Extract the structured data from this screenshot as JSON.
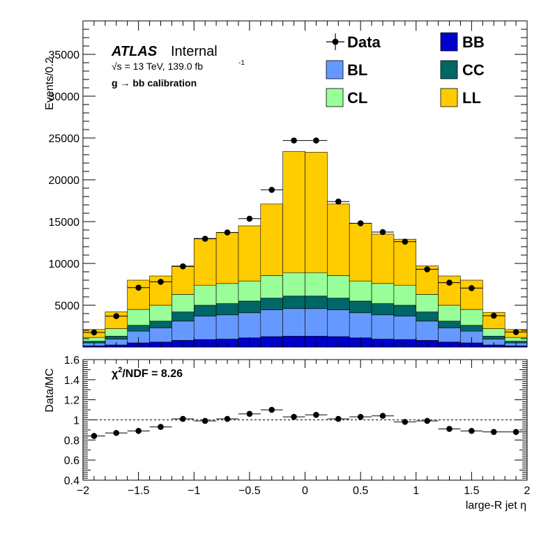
{
  "colors": {
    "BB": "#0000cc",
    "BL": "#6699ff",
    "CC": "#006666",
    "CL": "#99ff99",
    "LL": "#ffcc00",
    "data": "#000000"
  },
  "chart_data": [
    {
      "type": "bar",
      "stacked": true,
      "xlabel": "large-R jet η",
      "ylabel": "Events/0.2",
      "xlim": [
        -2,
        2
      ],
      "ylim": [
        0,
        39000
      ],
      "yticks": [
        5000,
        10000,
        15000,
        20000,
        25000,
        30000,
        35000
      ],
      "ytick_labels": [
        "5000",
        "10000",
        "15000",
        "20000",
        "25000",
        "30000",
        "35000"
      ],
      "x_bin_edges": [
        -2.0,
        -1.8,
        -1.6,
        -1.4,
        -1.2,
        -1.0,
        -0.8,
        -0.6,
        -0.4,
        -0.2,
        0.0,
        0.2,
        0.4,
        0.6,
        0.8,
        1.0,
        1.2,
        1.4,
        1.6,
        1.8,
        2.0
      ],
      "annotations": {
        "atlas": "ATLAS",
        "internal": "Internal",
        "energy": "√s = 13 TeV, 139.0 fb",
        "energy_sup": "-1",
        "selection": "g → bb calibration"
      },
      "legend": {
        "placement": "top-right",
        "entries": [
          "Data",
          "BB",
          "BL",
          "CC",
          "CL",
          "LL"
        ]
      },
      "series": [
        {
          "name": "BB",
          "values": [
            150,
            250,
            500,
            600,
            800,
            900,
            950,
            1100,
            1250,
            1300,
            1300,
            1250,
            1100,
            950,
            900,
            800,
            600,
            500,
            250,
            150
          ]
        },
        {
          "name": "BL",
          "values": [
            350,
            700,
            1400,
            1700,
            2300,
            2800,
            2900,
            3000,
            3200,
            3300,
            3300,
            3200,
            3000,
            2900,
            2800,
            2300,
            1700,
            1400,
            700,
            350
          ]
        },
        {
          "name": "CC",
          "values": [
            200,
            350,
            700,
            800,
            1100,
            1300,
            1350,
            1400,
            1400,
            1500,
            1500,
            1400,
            1400,
            1350,
            1300,
            1100,
            800,
            700,
            350,
            200
          ]
        },
        {
          "name": "CL",
          "values": [
            450,
            900,
            1900,
            1900,
            2100,
            2400,
            2400,
            2400,
            2700,
            2800,
            2800,
            2700,
            2400,
            2400,
            2400,
            2100,
            1900,
            1900,
            900,
            450
          ]
        },
        {
          "name": "LL",
          "values": [
            950,
            2000,
            3500,
            3500,
            3400,
            5600,
            6100,
            6600,
            8550,
            14500,
            14400,
            8550,
            6900,
            5900,
            5500,
            3400,
            3500,
            3500,
            1950,
            950
          ]
        }
      ],
      "data": {
        "name": "Data",
        "x": [
          -1.9,
          -1.7,
          -1.5,
          -1.3,
          -1.1,
          -0.9,
          -0.7,
          -0.5,
          -0.3,
          -0.1,
          0.1,
          0.3,
          0.5,
          0.7,
          0.9,
          1.1,
          1.3,
          1.5,
          1.7,
          1.9
        ],
        "y": [
          1750,
          3700,
          7100,
          7800,
          9650,
          12950,
          13700,
          15350,
          18800,
          24700,
          24700,
          17400,
          14800,
          13750,
          12600,
          9300,
          7700,
          7050,
          3750,
          1800
        ]
      }
    },
    {
      "type": "scatter",
      "xlabel": "large-R jet η",
      "ylabel": "Data/MC",
      "xlim": [
        -2,
        2
      ],
      "ylim": [
        0.4,
        1.6
      ],
      "yticks": [
        0.4,
        0.6,
        0.8,
        1.0,
        1.2,
        1.4,
        1.6
      ],
      "ytick_labels": [
        "0.4",
        "0.6",
        "0.8",
        "1",
        "1.2",
        "1.4",
        "1.6"
      ],
      "xticks": [
        -2,
        -1.5,
        -1,
        -0.5,
        0,
        0.5,
        1,
        1.5,
        2
      ],
      "xtick_labels": [
        "−2",
        "−1.5",
        "−1",
        "−0.5",
        "0",
        "0.5",
        "1",
        "1.5",
        "2"
      ],
      "reference_line": 1,
      "chi2_prefix": "χ",
      "chi2_sup": "2",
      "chi2_suffix": "/NDF = 8.26",
      "x": [
        -1.9,
        -1.7,
        -1.5,
        -1.3,
        -1.1,
        -0.9,
        -0.7,
        -0.5,
        -0.3,
        -0.1,
        0.1,
        0.3,
        0.5,
        0.7,
        0.9,
        1.1,
        1.3,
        1.5,
        1.7,
        1.9
      ],
      "y": [
        0.84,
        0.87,
        0.89,
        0.93,
        1.01,
        0.99,
        1.01,
        1.06,
        1.1,
        1.03,
        1.05,
        1.01,
        1.03,
        1.04,
        0.98,
        0.99,
        0.91,
        0.89,
        0.88,
        0.88
      ],
      "yerr": [
        0.03,
        0.02,
        0.03,
        0.02,
        0.02,
        0.015,
        0.015,
        0.015,
        0.015,
        0.01,
        0.01,
        0.015,
        0.015,
        0.015,
        0.015,
        0.02,
        0.02,
        0.02,
        0.02,
        0.03
      ]
    }
  ]
}
